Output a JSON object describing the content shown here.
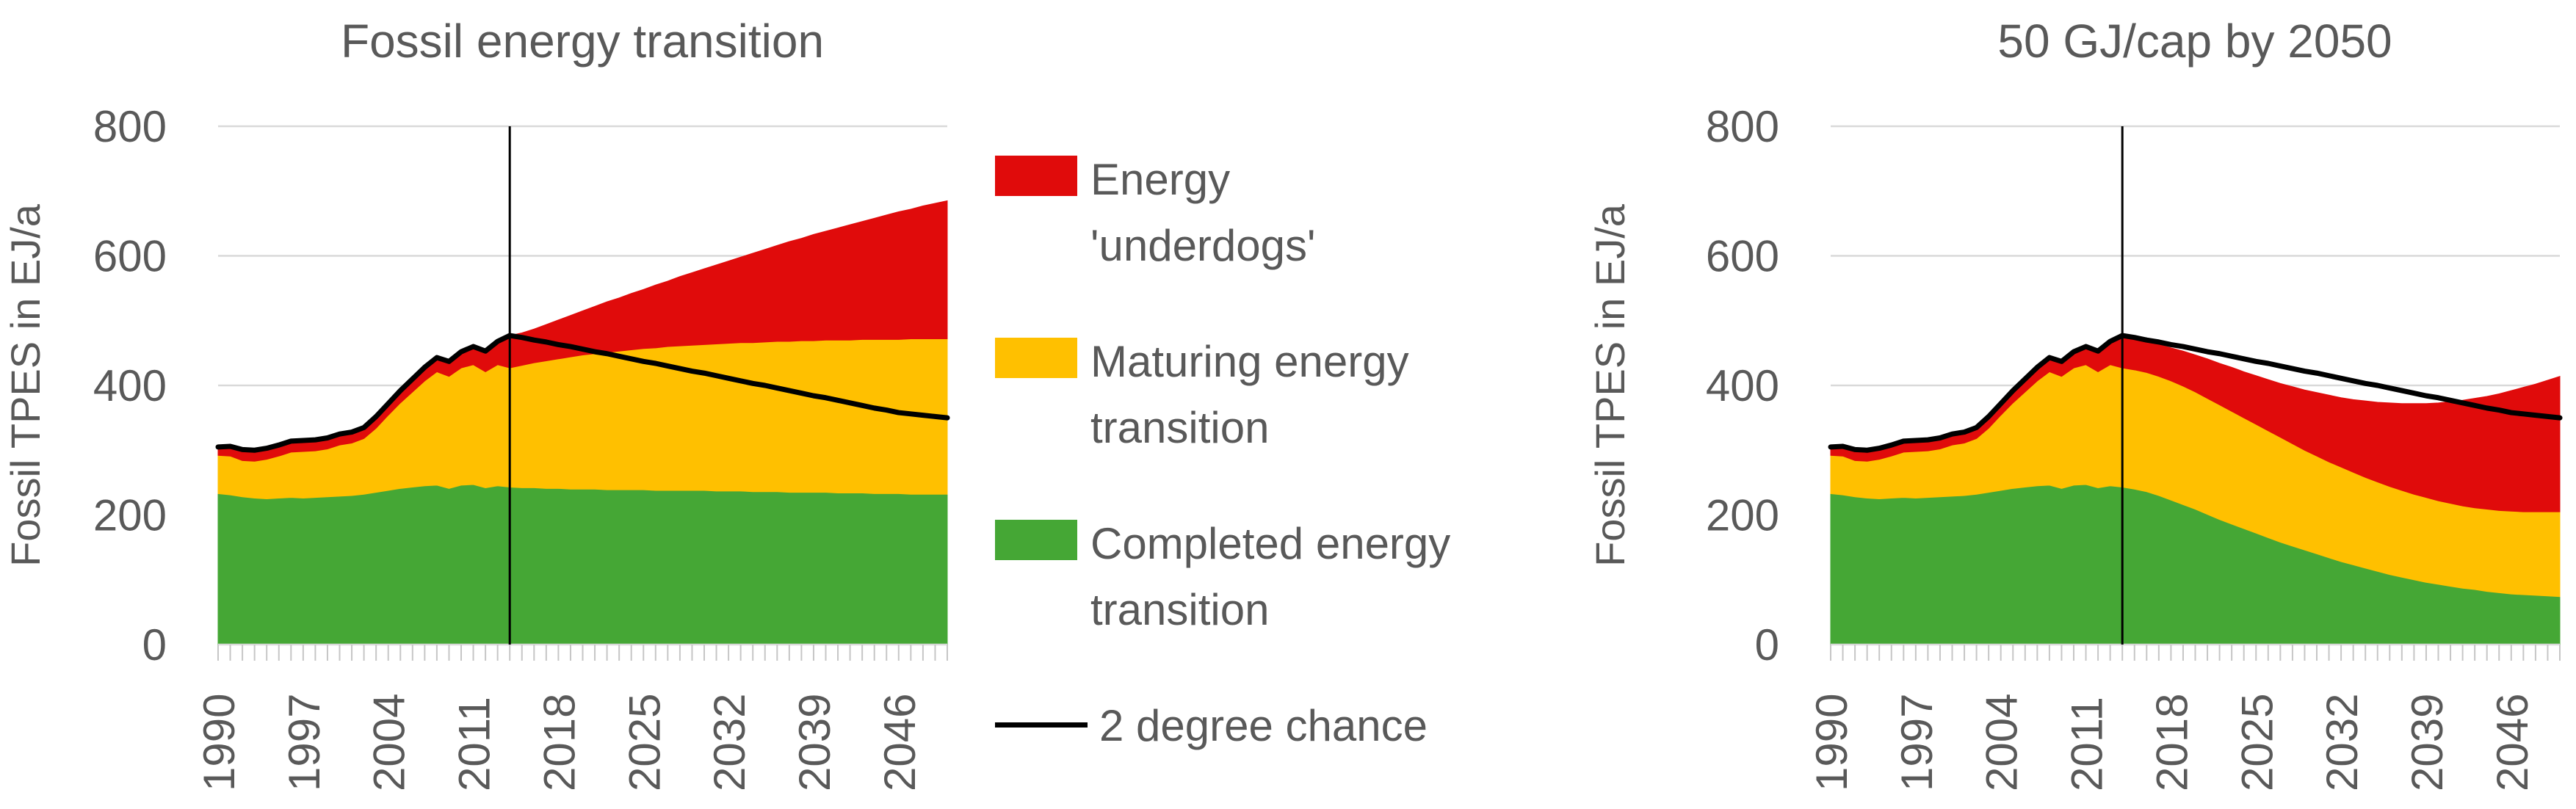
{
  "colors": {
    "red": "#e00b0b",
    "yellow": "#ffc000",
    "green": "#45a735",
    "line": "#000000",
    "grid": "#d9d9d9",
    "tick": "#c6c6c6",
    "text": "#595959",
    "background": "#ffffff"
  },
  "legend": {
    "items": [
      {
        "swatch": "box",
        "color": "#e00b0b",
        "lines": [
          "Energy",
          "'underdogs'"
        ]
      },
      {
        "swatch": "box",
        "color": "#ffc000",
        "lines": [
          "Maturing energy",
          "transition"
        ]
      },
      {
        "swatch": "box",
        "color": "#45a735",
        "lines": [
          "Completed energy",
          "transition"
        ]
      },
      {
        "swatch": "line",
        "color": "#000000",
        "lines": [
          "2 degree chance"
        ]
      }
    ]
  },
  "chart_data": [
    {
      "type": "area",
      "title": "Fossil energy transition",
      "xlabel": "",
      "ylabel": "Fossil TPES in EJ/a",
      "ylim": [
        0,
        800
      ],
      "xlim": [
        1990,
        2050
      ],
      "y_ticks": [
        0,
        200,
        400,
        600,
        800
      ],
      "x_tick_labels": [
        "1990",
        "1997",
        "2004",
        "2011",
        "2018",
        "2025",
        "2032",
        "2039",
        "2046"
      ],
      "x_minor_tick_step": 1,
      "grid": true,
      "vline_year": 2014,
      "years": [
        1990,
        1991,
        1992,
        1993,
        1994,
        1995,
        1996,
        1997,
        1998,
        1999,
        2000,
        2001,
        2002,
        2003,
        2004,
        2005,
        2006,
        2007,
        2008,
        2009,
        2010,
        2011,
        2012,
        2013,
        2014,
        2015,
        2016,
        2017,
        2018,
        2019,
        2020,
        2021,
        2022,
        2023,
        2024,
        2025,
        2026,
        2027,
        2028,
        2029,
        2030,
        2031,
        2032,
        2033,
        2034,
        2035,
        2036,
        2037,
        2038,
        2039,
        2040,
        2041,
        2042,
        2043,
        2044,
        2045,
        2046,
        2047,
        2048,
        2049,
        2050
      ],
      "series": [
        {
          "key": "completed",
          "name": "Completed energy transition",
          "color": "#45a735",
          "cum": [
            233,
            231,
            228,
            226,
            225,
            226,
            227,
            226,
            227,
            228,
            229,
            230,
            232,
            235,
            238,
            241,
            243,
            245,
            246,
            241,
            246,
            247,
            242,
            245,
            243,
            242,
            242,
            241,
            241,
            240,
            240,
            240,
            239,
            239,
            239,
            239,
            238,
            238,
            238,
            238,
            238,
            237,
            237,
            237,
            236,
            236,
            236,
            235,
            235,
            235,
            235,
            234,
            234,
            234,
            233,
            233,
            233,
            232,
            232,
            232,
            232
          ]
        },
        {
          "key": "maturing",
          "name": "Maturing energy transition",
          "color": "#ffc000",
          "cum": [
            292,
            291,
            284,
            283,
            286,
            291,
            297,
            298,
            299,
            302,
            308,
            311,
            318,
            334,
            354,
            373,
            390,
            407,
            421,
            414,
            427,
            432,
            421,
            432,
            427,
            431,
            435,
            438,
            441,
            444,
            447,
            449,
            451,
            453,
            455,
            457,
            458,
            460,
            461,
            462,
            463,
            464,
            465,
            466,
            466,
            467,
            468,
            468,
            469,
            469,
            470,
            470,
            470,
            471,
            471,
            471,
            471,
            472,
            472,
            472,
            472
          ]
        },
        {
          "key": "underdogs",
          "name": "Energy 'underdogs'",
          "color": "#e00b0b",
          "cum": [
            305,
            306,
            301,
            300,
            303,
            308,
            314,
            315,
            316,
            319,
            325,
            328,
            335,
            352,
            372,
            392,
            410,
            428,
            443,
            437,
            452,
            460,
            453,
            468,
            477,
            481,
            487,
            494,
            501,
            508,
            515,
            522,
            529,
            535,
            542,
            548,
            555,
            561,
            568,
            574,
            580,
            586,
            592,
            598,
            604,
            610,
            616,
            622,
            627,
            633,
            638,
            643,
            648,
            653,
            658,
            663,
            668,
            672,
            677,
            681,
            685
          ]
        }
      ],
      "line": {
        "name": "2 degree chance",
        "color": "#000000",
        "values": [
          305,
          306,
          301,
          300,
          303,
          308,
          314,
          315,
          316,
          319,
          325,
          328,
          335,
          352,
          372,
          392,
          410,
          428,
          443,
          437,
          452,
          460,
          453,
          468,
          477,
          474,
          470,
          467,
          463,
          460,
          456,
          452,
          449,
          445,
          441,
          437,
          434,
          430,
          426,
          422,
          419,
          415,
          411,
          407,
          403,
          400,
          396,
          392,
          388,
          384,
          381,
          377,
          373,
          369,
          365,
          362,
          358,
          356,
          354,
          352,
          350
        ]
      }
    },
    {
      "type": "area",
      "title": "50 GJ/cap by 2050",
      "xlabel": "",
      "ylabel": "Fossil TPES in EJ/a",
      "ylim": [
        0,
        800
      ],
      "xlim": [
        1990,
        2050
      ],
      "y_ticks": [
        0,
        200,
        400,
        600,
        800
      ],
      "x_tick_labels": [
        "1990",
        "1997",
        "2004",
        "2011",
        "2018",
        "2025",
        "2032",
        "2039",
        "2046"
      ],
      "x_minor_tick_step": 1,
      "grid": true,
      "vline_year": 2014,
      "years": [
        1990,
        1991,
        1992,
        1993,
        1994,
        1995,
        1996,
        1997,
        1998,
        1999,
        2000,
        2001,
        2002,
        2003,
        2004,
        2005,
        2006,
        2007,
        2008,
        2009,
        2010,
        2011,
        2012,
        2013,
        2014,
        2015,
        2016,
        2017,
        2018,
        2019,
        2020,
        2021,
        2022,
        2023,
        2024,
        2025,
        2026,
        2027,
        2028,
        2029,
        2030,
        2031,
        2032,
        2033,
        2034,
        2035,
        2036,
        2037,
        2038,
        2039,
        2040,
        2041,
        2042,
        2043,
        2044,
        2045,
        2046,
        2047,
        2048,
        2049,
        2050
      ],
      "series": [
        {
          "key": "completed",
          "name": "Completed energy transition",
          "color": "#45a735",
          "cum": [
            233,
            231,
            228,
            226,
            225,
            226,
            227,
            226,
            227,
            228,
            229,
            230,
            232,
            235,
            238,
            241,
            243,
            245,
            246,
            241,
            246,
            247,
            242,
            245,
            243,
            240,
            236,
            230,
            223,
            216,
            209,
            201,
            193,
            186,
            179,
            172,
            165,
            158,
            152,
            146,
            140,
            134,
            128,
            123,
            118,
            113,
            108,
            104,
            100,
            96,
            93,
            90,
            87,
            85,
            82,
            80,
            78,
            77,
            76,
            75,
            74
          ]
        },
        {
          "key": "maturing",
          "name": "Maturing energy transition",
          "color": "#ffc000",
          "cum": [
            292,
            291,
            284,
            283,
            286,
            291,
            297,
            298,
            299,
            302,
            308,
            311,
            318,
            334,
            354,
            373,
            390,
            407,
            421,
            414,
            427,
            432,
            421,
            432,
            427,
            424,
            420,
            414,
            407,
            399,
            390,
            380,
            370,
            360,
            350,
            340,
            330,
            320,
            310,
            300,
            291,
            282,
            274,
            266,
            258,
            251,
            244,
            238,
            232,
            227,
            222,
            218,
            214,
            211,
            209,
            207,
            206,
            205,
            205,
            205,
            205
          ]
        },
        {
          "key": "underdogs",
          "name": "Energy 'underdogs'",
          "color": "#e00b0b",
          "cum": [
            305,
            306,
            301,
            300,
            303,
            308,
            314,
            315,
            316,
            319,
            325,
            328,
            335,
            352,
            372,
            392,
            410,
            428,
            443,
            437,
            452,
            460,
            453,
            468,
            477,
            473,
            468,
            463,
            458,
            453,
            447,
            441,
            434,
            428,
            421,
            415,
            409,
            403,
            398,
            393,
            389,
            385,
            381,
            378,
            376,
            374,
            373,
            372,
            372,
            372,
            373,
            375,
            377,
            380,
            383,
            387,
            392,
            397,
            402,
            408,
            414
          ]
        }
      ],
      "line": {
        "name": "2 degree chance",
        "color": "#000000",
        "values": [
          305,
          306,
          301,
          300,
          303,
          308,
          314,
          315,
          316,
          319,
          325,
          328,
          335,
          352,
          372,
          392,
          410,
          428,
          443,
          437,
          452,
          460,
          453,
          468,
          477,
          474,
          470,
          467,
          463,
          460,
          456,
          452,
          449,
          445,
          441,
          437,
          434,
          430,
          426,
          422,
          419,
          415,
          411,
          407,
          403,
          400,
          396,
          392,
          388,
          384,
          381,
          377,
          373,
          369,
          365,
          362,
          358,
          356,
          354,
          352,
          350
        ]
      }
    }
  ]
}
